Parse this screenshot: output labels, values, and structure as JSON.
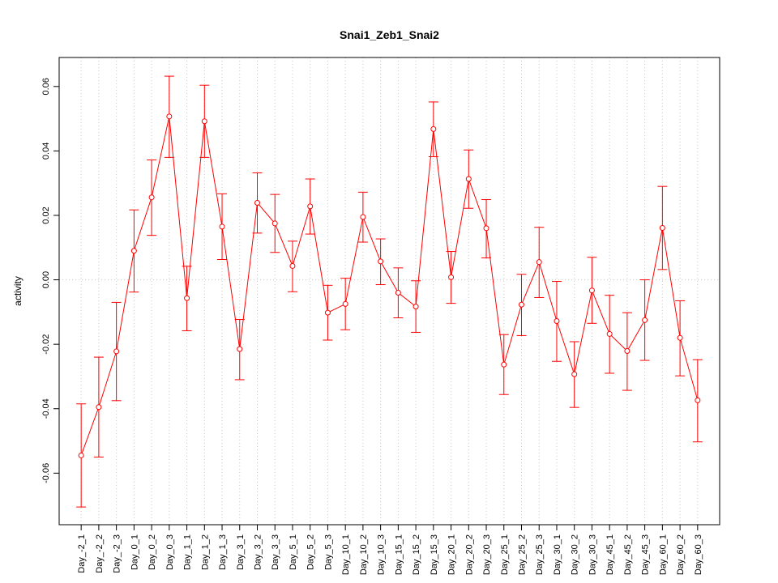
{
  "chart_data": {
    "type": "line",
    "title": "Snai1_Zeb1_Snai2",
    "xlabel": "",
    "ylabel": "activity",
    "ylim": [
      -0.076,
      0.069
    ],
    "yticks": [
      -0.06,
      -0.04,
      -0.02,
      0.0,
      0.02,
      0.04,
      0.06
    ],
    "ytick_labels": [
      "-0.06",
      "-0.04",
      "-0.02",
      "0.00",
      "0.02",
      "0.04",
      "0.06"
    ],
    "grid": true,
    "color": "#ff0000",
    "categories": [
      "Day_-2_1",
      "Day_-2_2",
      "Day_-2_3",
      "Day_0_1",
      "Day_0_2",
      "Day_0_3",
      "Day_1_1",
      "Day_1_2",
      "Day_1_3",
      "Day_3_1",
      "Day_3_2",
      "Day_3_3",
      "Day_5_1",
      "Day_5_2",
      "Day_5_3",
      "Day_10_1",
      "Day_10_2",
      "Day_10_3",
      "Day_15_1",
      "Day_15_2",
      "Day_15_3",
      "Day_20_1",
      "Day_20_2",
      "Day_20_3",
      "Day_25_1",
      "Day_25_2",
      "Day_25_3",
      "Day_30_1",
      "Day_30_2",
      "Day_30_3",
      "Day_45_1",
      "Day_45_2",
      "Day_45_3",
      "Day_60_1",
      "Day_60_2",
      "Day_60_3"
    ],
    "series": [
      {
        "values": [
          -0.0545,
          -0.0395,
          -0.0222,
          0.009,
          0.0256,
          0.0507,
          -0.0057,
          0.0492,
          0.0165,
          -0.0215,
          0.0239,
          0.0175,
          0.0043,
          0.0228,
          -0.0102,
          -0.0075,
          0.0195,
          0.0057,
          -0.004,
          -0.0083,
          0.0468,
          0.0008,
          0.0313,
          0.016,
          -0.0263,
          -0.0077,
          0.0055,
          -0.0128,
          -0.0293,
          -0.0033,
          -0.0168,
          -0.0221,
          -0.0125,
          0.0161,
          -0.018,
          -0.0374
        ],
        "upper": [
          -0.0385,
          -0.024,
          -0.007,
          0.0217,
          0.0372,
          0.0632,
          0.0042,
          0.0604,
          0.0267,
          -0.0123,
          0.0332,
          0.0265,
          0.012,
          0.0313,
          -0.0017,
          0.0005,
          0.0272,
          0.0127,
          0.0037,
          -0.0003,
          0.0552,
          0.0088,
          0.0403,
          0.0249,
          -0.017,
          0.0017,
          0.0163,
          -0.0005,
          -0.0192,
          0.007,
          -0.0048,
          -0.0102,
          0.0,
          0.029,
          -0.0065,
          -0.0248
        ],
        "lower": [
          -0.0705,
          -0.055,
          -0.0375,
          -0.0038,
          0.0138,
          0.038,
          -0.0158,
          0.038,
          0.0063,
          -0.031,
          0.0145,
          0.0085,
          -0.0037,
          0.0142,
          -0.0187,
          -0.0155,
          0.0117,
          -0.0015,
          -0.0118,
          -0.0163,
          0.0382,
          -0.0073,
          0.0222,
          0.0068,
          -0.0356,
          -0.0173,
          -0.0055,
          -0.0253,
          -0.0396,
          -0.0135,
          -0.029,
          -0.0343,
          -0.025,
          0.0032,
          -0.0298,
          -0.0503
        ]
      }
    ]
  }
}
